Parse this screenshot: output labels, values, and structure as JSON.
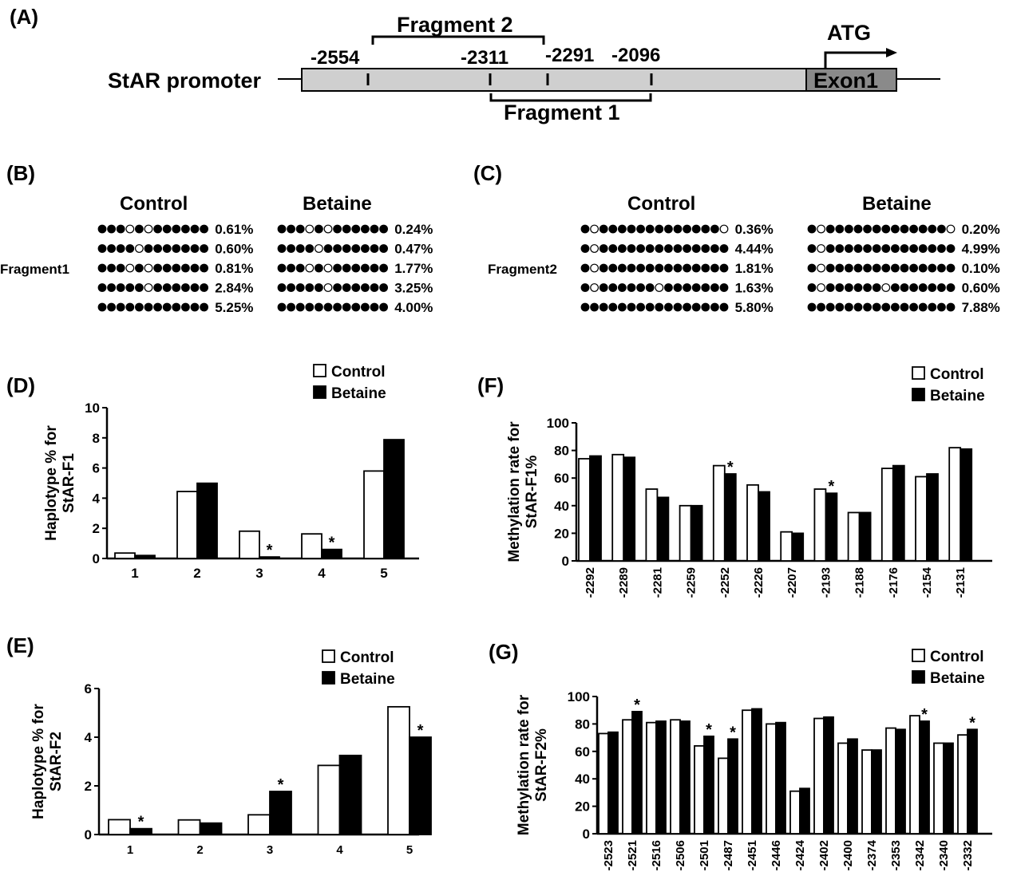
{
  "panels": {
    "a": "(A)",
    "b": "(B)",
    "c": "(C)",
    "d": "(D)",
    "e": "(E)",
    "f": "(F)",
    "g": "(G)"
  },
  "promoter": {
    "label": "StAR promoter",
    "fragment2": "Fragment 2",
    "fragment1": "Fragment 1",
    "exon": "Exon1",
    "atg": "ATG",
    "positions": [
      "-2554",
      "-2311",
      "-2291",
      "-2096"
    ]
  },
  "haplotypes": {
    "control": "Control",
    "betaine": "Betaine",
    "fragment1": {
      "row_label": "Fragment1",
      "control": [
        {
          "pattern": "111010111111",
          "pct": "0.61%"
        },
        {
          "pattern": "111101111111",
          "pct": "0.60%"
        },
        {
          "pattern": "111010111111",
          "pct": "0.81%"
        },
        {
          "pattern": "111110111111",
          "pct": "2.84%"
        },
        {
          "pattern": "111111111111",
          "pct": "5.25%"
        }
      ],
      "betaine": [
        {
          "pattern": "111010111111",
          "pct": "0.24%"
        },
        {
          "pattern": "111101111111",
          "pct": "0.47%"
        },
        {
          "pattern": "111010111111",
          "pct": "1.77%"
        },
        {
          "pattern": "111110111111",
          "pct": "3.25%"
        },
        {
          "pattern": "111111111111",
          "pct": "4.00%"
        }
      ]
    },
    "fragment2": {
      "row_label": "Fragment2",
      "control": [
        {
          "pattern": "1011111111111110",
          "pct": "0.36%"
        },
        {
          "pattern": "1011111111111111",
          "pct": "4.44%"
        },
        {
          "pattern": "1011111111111111",
          "pct": "1.81%"
        },
        {
          "pattern": "1011111101111111",
          "pct": "1.63%"
        },
        {
          "pattern": "1111111111111111",
          "pct": "5.80%"
        }
      ],
      "betaine": [
        {
          "pattern": "1011111111111110",
          "pct": "0.20%"
        },
        {
          "pattern": "1011111111111111",
          "pct": "4.99%"
        },
        {
          "pattern": "1011111111111111",
          "pct": "0.10%"
        },
        {
          "pattern": "1011111101111111",
          "pct": "0.60%"
        },
        {
          "pattern": "1111111111111111",
          "pct": "7.88%"
        }
      ]
    }
  },
  "colors": {
    "control_fill": "#ffffff",
    "betaine_fill": "#000000",
    "promoter_fill": "#cfcfcf",
    "exon_fill": "#8a8a8a"
  },
  "chart_data": [
    {
      "id": "D",
      "type": "bar",
      "ylabel_line1": "Haplotype % for",
      "ylabel_line2": "StAR-F1",
      "categories": [
        "1",
        "2",
        "3",
        "4",
        "5"
      ],
      "ylim": [
        0,
        10
      ],
      "yticks": [
        0,
        2,
        4,
        6,
        8,
        10
      ],
      "series": [
        {
          "name": "Control",
          "values": [
            0.36,
            4.44,
            1.81,
            1.63,
            5.8
          ]
        },
        {
          "name": "Betaine",
          "values": [
            0.2,
            4.99,
            0.1,
            0.6,
            7.88
          ]
        }
      ],
      "significant": [
        2,
        3
      ],
      "legend": "top-right",
      "grid": false
    },
    {
      "id": "E",
      "type": "bar",
      "ylabel_line1": "Haplotype % for",
      "ylabel_line2": "StAR-F2",
      "categories": [
        "1",
        "2",
        "3",
        "4",
        "5"
      ],
      "ylim": [
        0,
        6
      ],
      "yticks": [
        0,
        2,
        4,
        6
      ],
      "series": [
        {
          "name": "Control",
          "values": [
            0.61,
            0.6,
            0.81,
            2.84,
            5.25
          ]
        },
        {
          "name": "Betaine",
          "values": [
            0.24,
            0.47,
            1.77,
            3.25,
            4.0
          ]
        }
      ],
      "significant": [
        0,
        2,
        4
      ],
      "legend": "top-right",
      "grid": false
    },
    {
      "id": "F",
      "type": "bar",
      "ylabel_line1": "Methylation rate for",
      "ylabel_line2": "StAR-F1%",
      "categories": [
        "-2292",
        "-2289",
        "-2281",
        "-2259",
        "-2252",
        "-2226",
        "-2207",
        "-2193",
        "-2188",
        "-2176",
        "-2154",
        "-2131"
      ],
      "ylim": [
        0,
        100
      ],
      "yticks": [
        0,
        20,
        40,
        60,
        80,
        100
      ],
      "series": [
        {
          "name": "Control",
          "values": [
            74,
            77,
            52,
            40,
            69,
            55,
            21,
            52,
            35,
            67,
            61,
            82
          ]
        },
        {
          "name": "Betaine",
          "values": [
            76,
            75,
            46,
            40,
            63,
            50,
            20,
            49,
            35,
            69,
            63,
            81
          ]
        }
      ],
      "significant": [
        4,
        7
      ],
      "legend": "top-right",
      "grid": false
    },
    {
      "id": "G",
      "type": "bar",
      "ylabel_line1": "Methylation rate for",
      "ylabel_line2": "StAR-F2%",
      "categories": [
        "-2523",
        "-2521",
        "-2516",
        "-2506",
        "-2501",
        "-2487",
        "-2451",
        "-2446",
        "-2424",
        "-2402",
        "-2400",
        "-2374",
        "-2353",
        "-2342",
        "-2340",
        "-2332"
      ],
      "ylim": [
        0,
        100
      ],
      "yticks": [
        0,
        20,
        40,
        60,
        80,
        100
      ],
      "series": [
        {
          "name": "Control",
          "values": [
            73,
            83,
            81,
            83,
            64,
            55,
            90,
            80,
            31,
            84,
            66,
            61,
            77,
            86,
            66,
            72
          ]
        },
        {
          "name": "Betaine",
          "values": [
            74,
            89,
            82,
            82,
            71,
            69,
            91,
            81,
            33,
            85,
            69,
            61,
            76,
            82,
            66,
            76
          ]
        }
      ],
      "significant": [
        1,
        4,
        5,
        13,
        15
      ],
      "legend": "top-right",
      "grid": false
    }
  ],
  "star": "*"
}
